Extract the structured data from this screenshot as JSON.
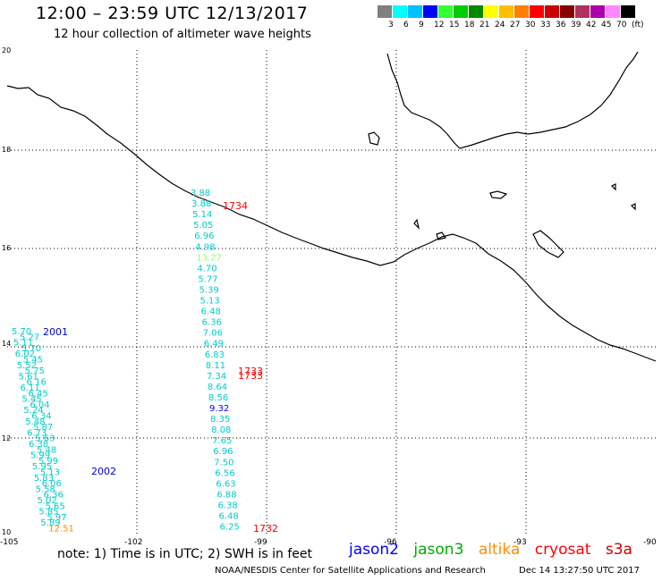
{
  "header": {
    "title": "12:00 – 23:59 UTC 12/13/2017",
    "subtitle": "12 hour collection of altimeter wave heights"
  },
  "legend": {
    "colors": [
      "#808080",
      "#00ffff",
      "#00bfff",
      "#0000ff",
      "#33ff33",
      "#00cc00",
      "#008800",
      "#ffff00",
      "#ffbf00",
      "#ff8000",
      "#ff0000",
      "#cc0000",
      "#880000",
      "#b03060",
      "#aa00aa",
      "#ff88ff",
      "#000000"
    ],
    "ticks": [
      "3",
      "6",
      "9",
      "12",
      "15",
      "18",
      "21",
      "24",
      "27",
      "30",
      "33",
      "36",
      "39",
      "42",
      "45",
      "70",
      "(ft)"
    ]
  },
  "axes": {
    "lon_labels": [
      "-105",
      "-102",
      "-99",
      "-96",
      "-93",
      "-90"
    ],
    "lat_labels": [
      "20",
      "18",
      "16",
      "14",
      "12",
      "10"
    ]
  },
  "tracks": {
    "jason3_track": [
      "3.88",
      "3.88",
      "5.14",
      "5.05",
      "6.96",
      "4.98",
      "13.27",
      "4.70",
      "5.77",
      "5.39",
      "5.13",
      "6.48",
      "6.36",
      "7.06",
      "6.49",
      "6.83",
      "8.11",
      "7.34",
      "8.64",
      "8.56",
      "9.32",
      "8.35",
      "8.08",
      "7.65",
      "6.96",
      "7.50",
      "6.56",
      "6.63",
      "6.88",
      "6.38",
      "6.48",
      "6.25"
    ],
    "west_track": [
      "5.70",
      "5.27",
      "5.11",
      "5.70",
      "6.02",
      "5.45",
      "5.52",
      "5.75",
      "5.61",
      "6.16",
      "6.11",
      "6.45",
      "5.45",
      "6.04",
      "5.24",
      "6.34",
      "5.48",
      "5.87",
      "6.73",
      "5.63",
      "6.38",
      "5.48",
      "5.99",
      "5.99",
      "5.95",
      "5.13",
      "5.83",
      "6.06",
      "5.58",
      "6.36",
      "5.02",
      "5.65",
      "5.85",
      "5.97",
      "5.89",
      "12.51"
    ],
    "pass_times": [
      "1734",
      "1733",
      "1733",
      "1732",
      "2001",
      "2002"
    ]
  },
  "footer": {
    "note": "note:  1) Time is in UTC;  2) SWH is in feet",
    "satellites": [
      "jason2",
      "jason3",
      "altika",
      "cryosat",
      "s3a"
    ],
    "satellite_colors": [
      "#0000ff",
      "#00aa00",
      "#ff8c00",
      "#ff0000",
      "#cc0000"
    ],
    "credit": "NOAA/NESDIS Center for Satellite Applications and Research",
    "timestamp": "Dec 14 13:27:50 UTC 2017"
  }
}
